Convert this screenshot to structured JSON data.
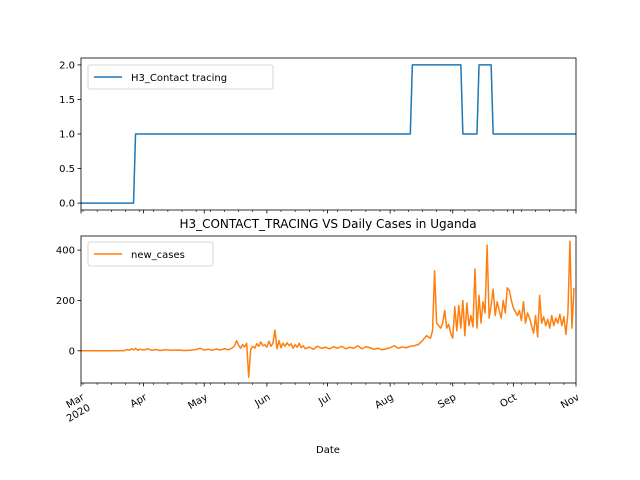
{
  "chart_data": [
    {
      "type": "line",
      "title": "",
      "xlabel": "",
      "ylabel": "",
      "ylim": [
        -0.1,
        2.1
      ],
      "yticks": [
        0.0,
        0.5,
        1.0,
        1.5,
        2.0
      ],
      "ytick_labels": [
        "0.0",
        "0.5",
        "1.0",
        "1.5",
        "2.0"
      ],
      "xlim": [
        "2020-03-01",
        "2020-11-01"
      ],
      "legend": "upper-left",
      "grid": false,
      "series": [
        {
          "name": "H3_Contact tracing",
          "color": "#1f77b4",
          "step_points": [
            [
              "2020-03-01",
              0
            ],
            [
              "2020-03-27",
              0
            ],
            [
              "2020-03-28",
              1
            ],
            [
              "2020-08-11",
              1
            ],
            [
              "2020-08-12",
              2
            ],
            [
              "2020-09-05",
              2
            ],
            [
              "2020-09-06",
              1
            ],
            [
              "2020-09-13",
              1
            ],
            [
              "2020-09-14",
              2
            ],
            [
              "2020-09-20",
              2
            ],
            [
              "2020-09-21",
              1
            ],
            [
              "2020-11-01",
              1
            ]
          ]
        }
      ]
    },
    {
      "type": "line",
      "title": "H3_CONTACT_TRACING VS Daily Cases in Uganda",
      "xlabel": "Date",
      "ylabel": "",
      "ylim": [
        -128,
        456
      ],
      "yticks": [
        0,
        200,
        400
      ],
      "ytick_labels": [
        "0",
        "200",
        "400"
      ],
      "xlim": [
        "2020-03-01",
        "2020-11-01"
      ],
      "xticks": [
        "2020-03-01",
        "2020-04-01",
        "2020-05-01",
        "2020-06-01",
        "2020-07-01",
        "2020-08-01",
        "2020-09-01",
        "2020-10-01",
        "2020-11-01"
      ],
      "xtick_labels": [
        "Mar\n2020",
        "Apr",
        "May",
        "Jun",
        "Jul",
        "Aug",
        "Sep",
        "Oct",
        "Nov"
      ],
      "legend": "upper-left",
      "grid": false,
      "series": [
        {
          "name": "new_cases",
          "color": "#ff7f0e",
          "points": [
            [
              "2020-03-01",
              0
            ],
            [
              "2020-03-20",
              0
            ],
            [
              "2020-03-21",
              1
            ],
            [
              "2020-03-22",
              0
            ],
            [
              "2020-03-24",
              5
            ],
            [
              "2020-03-25",
              2
            ],
            [
              "2020-03-26",
              8
            ],
            [
              "2020-03-27",
              3
            ],
            [
              "2020-03-28",
              10
            ],
            [
              "2020-03-29",
              2
            ],
            [
              "2020-03-30",
              6
            ],
            [
              "2020-04-01",
              3
            ],
            [
              "2020-04-03",
              8
            ],
            [
              "2020-04-05",
              2
            ],
            [
              "2020-04-07",
              5
            ],
            [
              "2020-04-09",
              1
            ],
            [
              "2020-04-12",
              4
            ],
            [
              "2020-04-15",
              2
            ],
            [
              "2020-04-18",
              3
            ],
            [
              "2020-04-21",
              1
            ],
            [
              "2020-04-24",
              2
            ],
            [
              "2020-04-27",
              5
            ],
            [
              "2020-04-29",
              10
            ],
            [
              "2020-05-01",
              3
            ],
            [
              "2020-05-03",
              6
            ],
            [
              "2020-05-05",
              2
            ],
            [
              "2020-05-07",
              7
            ],
            [
              "2020-05-09",
              3
            ],
            [
              "2020-05-11",
              8
            ],
            [
              "2020-05-13",
              4
            ],
            [
              "2020-05-15",
              12
            ],
            [
              "2020-05-16",
              20
            ],
            [
              "2020-05-17",
              40
            ],
            [
              "2020-05-18",
              22
            ],
            [
              "2020-05-19",
              10
            ],
            [
              "2020-05-20",
              25
            ],
            [
              "2020-05-21",
              15
            ],
            [
              "2020-05-22",
              30
            ],
            [
              "2020-05-23",
              -105
            ],
            [
              "2020-05-24",
              5
            ],
            [
              "2020-05-25",
              18
            ],
            [
              "2020-05-26",
              10
            ],
            [
              "2020-05-27",
              28
            ],
            [
              "2020-05-28",
              18
            ],
            [
              "2020-05-29",
              35
            ],
            [
              "2020-05-30",
              20
            ],
            [
              "2020-05-31",
              24
            ],
            [
              "2020-06-01",
              15
            ],
            [
              "2020-06-02",
              38
            ],
            [
              "2020-06-03",
              18
            ],
            [
              "2020-06-04",
              30
            ],
            [
              "2020-06-05",
              82
            ],
            [
              "2020-06-06",
              8
            ],
            [
              "2020-06-07",
              40
            ],
            [
              "2020-06-08",
              12
            ],
            [
              "2020-06-09",
              30
            ],
            [
              "2020-06-10",
              18
            ],
            [
              "2020-06-11",
              32
            ],
            [
              "2020-06-12",
              20
            ],
            [
              "2020-06-13",
              28
            ],
            [
              "2020-06-14",
              10
            ],
            [
              "2020-06-15",
              24
            ],
            [
              "2020-06-16",
              14
            ],
            [
              "2020-06-17",
              30
            ],
            [
              "2020-06-18",
              12
            ],
            [
              "2020-06-19",
              20
            ],
            [
              "2020-06-20",
              8
            ],
            [
              "2020-06-22",
              15
            ],
            [
              "2020-06-24",
              6
            ],
            [
              "2020-06-26",
              18
            ],
            [
              "2020-06-28",
              10
            ],
            [
              "2020-06-30",
              14
            ],
            [
              "2020-07-02",
              8
            ],
            [
              "2020-07-04",
              16
            ],
            [
              "2020-07-06",
              10
            ],
            [
              "2020-07-08",
              18
            ],
            [
              "2020-07-10",
              8
            ],
            [
              "2020-07-12",
              14
            ],
            [
              "2020-07-14",
              10
            ],
            [
              "2020-07-16",
              20
            ],
            [
              "2020-07-18",
              8
            ],
            [
              "2020-07-20",
              16
            ],
            [
              "2020-07-22",
              12
            ],
            [
              "2020-07-24",
              6
            ],
            [
              "2020-07-26",
              10
            ],
            [
              "2020-07-28",
              4
            ],
            [
              "2020-07-30",
              8
            ],
            [
              "2020-08-01",
              12
            ],
            [
              "2020-08-03",
              20
            ],
            [
              "2020-08-05",
              10
            ],
            [
              "2020-08-07",
              15
            ],
            [
              "2020-08-09",
              12
            ],
            [
              "2020-08-11",
              18
            ],
            [
              "2020-08-13",
              20
            ],
            [
              "2020-08-15",
              25
            ],
            [
              "2020-08-17",
              40
            ],
            [
              "2020-08-19",
              60
            ],
            [
              "2020-08-21",
              50
            ],
            [
              "2020-08-22",
              80
            ],
            [
              "2020-08-23",
              318
            ],
            [
              "2020-08-24",
              110
            ],
            [
              "2020-08-25",
              100
            ],
            [
              "2020-08-26",
              90
            ],
            [
              "2020-08-27",
              110
            ],
            [
              "2020-08-28",
              160
            ],
            [
              "2020-08-29",
              90
            ],
            [
              "2020-08-30",
              105
            ],
            [
              "2020-08-31",
              70
            ],
            [
              "2020-09-01",
              50
            ],
            [
              "2020-09-02",
              175
            ],
            [
              "2020-09-03",
              80
            ],
            [
              "2020-09-04",
              180
            ],
            [
              "2020-09-05",
              90
            ],
            [
              "2020-09-06",
              200
            ],
            [
              "2020-09-07",
              60
            ],
            [
              "2020-09-08",
              190
            ],
            [
              "2020-09-09",
              100
            ],
            [
              "2020-09-10",
              140
            ],
            [
              "2020-09-11",
              95
            ],
            [
              "2020-09-12",
              325
            ],
            [
              "2020-09-13",
              90
            ],
            [
              "2020-09-14",
              220
            ],
            [
              "2020-09-15",
              110
            ],
            [
              "2020-09-16",
              195
            ],
            [
              "2020-09-17",
              150
            ],
            [
              "2020-09-18",
              420
            ],
            [
              "2020-09-19",
              130
            ],
            [
              "2020-09-20",
              180
            ],
            [
              "2020-09-21",
              245
            ],
            [
              "2020-09-22",
              140
            ],
            [
              "2020-09-23",
              195
            ],
            [
              "2020-09-24",
              160
            ],
            [
              "2020-09-25",
              130
            ],
            [
              "2020-09-26",
              200
            ],
            [
              "2020-09-27",
              150
            ],
            [
              "2020-09-28",
              250
            ],
            [
              "2020-09-29",
              240
            ],
            [
              "2020-09-30",
              200
            ],
            [
              "2020-10-01",
              170
            ],
            [
              "2020-10-02",
              155
            ],
            [
              "2020-10-03",
              140
            ],
            [
              "2020-10-04",
              160
            ],
            [
              "2020-10-05",
              120
            ],
            [
              "2020-10-06",
              195
            ],
            [
              "2020-10-07",
              110
            ],
            [
              "2020-10-08",
              150
            ],
            [
              "2020-10-09",
              130
            ],
            [
              "2020-10-10",
              100
            ],
            [
              "2020-10-11",
              70
            ],
            [
              "2020-10-12",
              140
            ],
            [
              "2020-10-13",
              55
            ],
            [
              "2020-10-14",
              220
            ],
            [
              "2020-10-15",
              110
            ],
            [
              "2020-10-16",
              135
            ],
            [
              "2020-10-17",
              100
            ],
            [
              "2020-10-18",
              125
            ],
            [
              "2020-10-19",
              90
            ],
            [
              "2020-10-20",
              140
            ],
            [
              "2020-10-21",
              100
            ],
            [
              "2020-10-22",
              130
            ],
            [
              "2020-10-23",
              110
            ],
            [
              "2020-10-24",
              145
            ],
            [
              "2020-10-25",
              100
            ],
            [
              "2020-10-26",
              135
            ],
            [
              "2020-10-27",
              65
            ],
            [
              "2020-10-28",
              150
            ],
            [
              "2020-10-29",
              435
            ],
            [
              "2020-10-30",
              90
            ],
            [
              "2020-10-31",
              250
            ]
          ]
        }
      ]
    }
  ]
}
